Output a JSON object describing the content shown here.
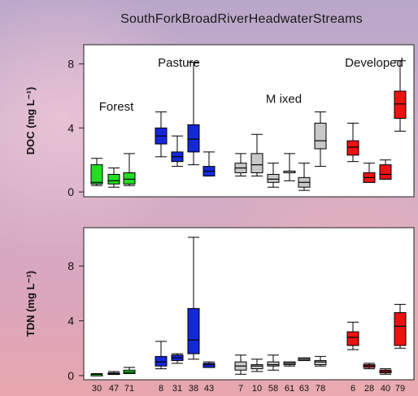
{
  "chart_data": {
    "title": "SouthForkBroadRiverHeadwaterStreams",
    "type": "box",
    "colors": {
      "Forest": "#22dd22",
      "Pasture": "#1428d8",
      "Mixed": "#c8c8c8",
      "Developed": "#ee1111",
      "background_sky": "#c9a9c8"
    },
    "categories": [
      "30",
      "47",
      "71",
      "8",
      "31",
      "38",
      "43",
      "7",
      "10",
      "58",
      "61",
      "63",
      "78",
      "6",
      "28",
      "40",
      "79"
    ],
    "groups": [
      {
        "name": "Forest",
        "categories": [
          "30",
          "47",
          "71"
        ]
      },
      {
        "name": "Pasture",
        "categories": [
          "8",
          "31",
          "38",
          "43"
        ]
      },
      {
        "name": "M ixed",
        "categories": [
          "7",
          "10",
          "58",
          "61",
          "63",
          "78"
        ]
      },
      {
        "name": "Developed",
        "categories": [
          "6",
          "28",
          "40",
          "79"
        ]
      }
    ],
    "panels": [
      {
        "ylabel": "DOC (mg L⁻¹)",
        "ylim": [
          -0.3,
          9.2
        ],
        "yticks": [
          0,
          4,
          8
        ],
        "boxes": [
          {
            "cat": "30",
            "group": "Forest",
            "min": 0.4,
            "q1": 0.5,
            "median": 0.6,
            "q3": 1.7,
            "max": 2.1
          },
          {
            "cat": "47",
            "group": "Forest",
            "min": 0.3,
            "q1": 0.5,
            "median": 0.7,
            "q3": 1.1,
            "max": 1.5
          },
          {
            "cat": "71",
            "group": "Forest",
            "min": 0.4,
            "q1": 0.5,
            "median": 0.8,
            "q3": 1.2,
            "max": 2.4
          },
          {
            "cat": "8",
            "group": "Pasture",
            "min": 2.2,
            "q1": 3.0,
            "median": 3.5,
            "q3": 4.0,
            "max": 5.0
          },
          {
            "cat": "31",
            "group": "Pasture",
            "min": 1.6,
            "q1": 1.9,
            "median": 2.2,
            "q3": 2.5,
            "max": 3.5
          },
          {
            "cat": "38",
            "group": "Pasture",
            "min": 1.7,
            "q1": 2.5,
            "median": 3.3,
            "q3": 4.2,
            "max": 8.1
          },
          {
            "cat": "43",
            "group": "Pasture",
            "min": 1.0,
            "q1": 1.0,
            "median": 1.3,
            "q3": 1.6,
            "max": 2.5
          },
          {
            "cat": "7",
            "group": "M ixed",
            "min": 1.0,
            "q1": 1.2,
            "median": 1.5,
            "q3": 1.8,
            "max": 2.4
          },
          {
            "cat": "10",
            "group": "M ixed",
            "min": 1.0,
            "q1": 1.2,
            "median": 1.7,
            "q3": 2.4,
            "max": 3.6
          },
          {
            "cat": "58",
            "group": "M ixed",
            "min": 0.3,
            "q1": 0.6,
            "median": 0.8,
            "q3": 1.1,
            "max": 1.8
          },
          {
            "cat": "61",
            "group": "M ixed",
            "min": 0.7,
            "q1": 1.3,
            "median": 1.3,
            "q3": 1.3,
            "max": 2.4
          },
          {
            "cat": "63",
            "group": "M ixed",
            "min": 0.1,
            "q1": 0.3,
            "median": 0.6,
            "q3": 0.9,
            "max": 1.8
          },
          {
            "cat": "78",
            "group": "M ixed",
            "min": 1.6,
            "q1": 2.7,
            "median": 3.2,
            "q3": 4.3,
            "max": 5.0
          },
          {
            "cat": "6",
            "group": "Developed",
            "min": 1.9,
            "q1": 2.3,
            "median": 2.8,
            "q3": 3.2,
            "max": 4.3
          },
          {
            "cat": "28",
            "group": "Developed",
            "min": 0.6,
            "q1": 0.6,
            "median": 0.9,
            "q3": 1.2,
            "max": 1.8
          },
          {
            "cat": "40",
            "group": "Developed",
            "min": 0.8,
            "q1": 0.8,
            "median": 1.1,
            "q3": 1.7,
            "max": 2.0
          },
          {
            "cat": "79",
            "group": "Developed",
            "min": 3.8,
            "q1": 4.6,
            "median": 5.5,
            "q3": 6.3,
            "max": 8.2
          }
        ]
      },
      {
        "ylabel": "TDN (mg L⁻¹)",
        "ylim": [
          -0.3,
          10.8
        ],
        "yticks": [
          0,
          4,
          8
        ],
        "boxes": [
          {
            "cat": "30",
            "group": "Forest",
            "min": 0.05,
            "q1": 0.05,
            "median": 0.1,
            "q3": 0.1,
            "max": 0.15
          },
          {
            "cat": "47",
            "group": "Forest",
            "min": 0.1,
            "q1": 0.1,
            "median": 0.15,
            "q3": 0.2,
            "max": 0.3
          },
          {
            "cat": "71",
            "group": "Forest",
            "min": 0.15,
            "q1": 0.15,
            "median": 0.25,
            "q3": 0.4,
            "max": 0.6
          },
          {
            "cat": "8",
            "group": "Pasture",
            "min": 0.5,
            "q1": 0.7,
            "median": 1.0,
            "q3": 1.4,
            "max": 2.5
          },
          {
            "cat": "31",
            "group": "Pasture",
            "min": 0.9,
            "q1": 1.1,
            "median": 1.3,
            "q3": 1.5,
            "max": 1.6
          },
          {
            "cat": "38",
            "group": "Pasture",
            "min": 1.2,
            "q1": 1.6,
            "median": 2.6,
            "q3": 4.9,
            "max": 10.1
          },
          {
            "cat": "43",
            "group": "Pasture",
            "min": 0.6,
            "q1": 0.6,
            "median": 0.8,
            "q3": 0.9,
            "max": 1.0
          },
          {
            "cat": "7",
            "group": "M ixed",
            "min": 0.1,
            "q1": 0.4,
            "median": 0.7,
            "q3": 1.0,
            "max": 1.5
          },
          {
            "cat": "10",
            "group": "M ixed",
            "min": 0.3,
            "q1": 0.5,
            "median": 0.7,
            "q3": 0.8,
            "max": 1.2
          },
          {
            "cat": "58",
            "group": "M ixed",
            "min": 0.4,
            "q1": 0.7,
            "median": 0.8,
            "q3": 1.0,
            "max": 1.5
          },
          {
            "cat": "61",
            "group": "M ixed",
            "min": 0.7,
            "q1": 0.8,
            "median": 0.9,
            "q3": 1.0,
            "max": 1.0
          },
          {
            "cat": "63",
            "group": "M ixed",
            "min": 1.1,
            "q1": 1.1,
            "median": 1.2,
            "q3": 1.3,
            "max": 1.3
          },
          {
            "cat": "78",
            "group": "M ixed",
            "min": 0.7,
            "q1": 0.8,
            "median": 1.0,
            "q3": 1.1,
            "max": 1.4
          },
          {
            "cat": "6",
            "group": "Developed",
            "min": 1.9,
            "q1": 2.2,
            "median": 2.8,
            "q3": 3.2,
            "max": 3.9
          },
          {
            "cat": "28",
            "group": "Developed",
            "min": 0.5,
            "q1": 0.6,
            "median": 0.7,
            "q3": 0.8,
            "max": 0.9
          },
          {
            "cat": "40",
            "group": "Developed",
            "min": 0.1,
            "q1": 0.2,
            "median": 0.3,
            "q3": 0.4,
            "max": 0.5
          },
          {
            "cat": "79",
            "group": "Developed",
            "min": 2.0,
            "q1": 2.2,
            "median": 3.6,
            "q3": 4.6,
            "max": 5.2
          }
        ]
      }
    ]
  }
}
